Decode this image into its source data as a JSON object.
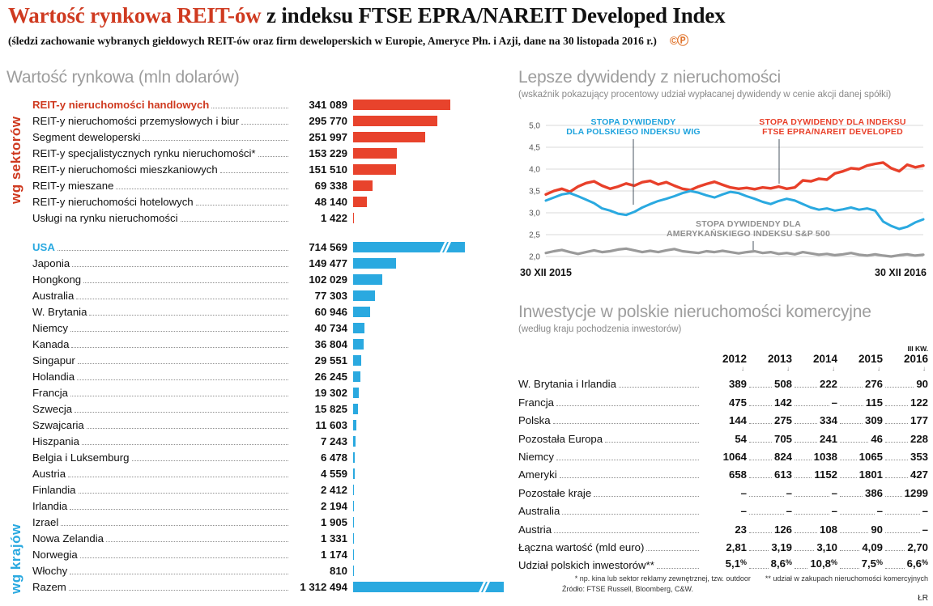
{
  "colors": {
    "red": "#e8432c",
    "blue": "#2aa9e0",
    "gray_line": "#9a9a9a",
    "title_red": "#cf3a20"
  },
  "header": {
    "title_red": "Wartość rynkowa REIT-ów",
    "title_black": " z indeksu FTSE EPRA/NAREIT Developed Index",
    "subtitle": "(śledzi zachowanie wybranych giełdowych REIT-ów oraz firm deweloperskich w Europie, Ameryce Płn. i Azji, dane na 30 listopada 2016 r.)",
    "copyright": "©Ⓟ"
  },
  "chart_data": [
    {
      "type": "bar",
      "title": "Wartość rynkowa (mln dolarów)",
      "unit": "mln dolarów",
      "groups": [
        {
          "name": "wg sektorów",
          "items": [
            {
              "label": "REIT-y nieruchomości handlowych",
              "value": 341089,
              "display": "341 089",
              "emphasis": true
            },
            {
              "label": "REIT-y nieruchomości przemysłowych i biur",
              "value": 295770,
              "display": "295 770"
            },
            {
              "label": "Segment deweloperski",
              "value": 251997,
              "display": "251 997"
            },
            {
              "label": "REIT-y specjalistycznych rynku nieruchomości*",
              "value": 153229,
              "display": "153 229"
            },
            {
              "label": "REIT-y nieruchomości mieszkaniowych",
              "value": 151510,
              "display": "151 510"
            },
            {
              "label": "REIT-y mieszane",
              "value": 69338,
              "display": "69 338"
            },
            {
              "label": "REIT-y nieruchomości hotelowych",
              "value": 48140,
              "display": "48 140"
            },
            {
              "label": "Usługi na rynku nieruchomości",
              "value": 1422,
              "display": "1 422"
            }
          ]
        },
        {
          "name": "wg krajów",
          "items": [
            {
              "label": "USA",
              "value": 714569,
              "display": "714 569",
              "emphasis": true,
              "broken": true
            },
            {
              "label": "Japonia",
              "value": 149477,
              "display": "149 477"
            },
            {
              "label": "Hongkong",
              "value": 102029,
              "display": "102 029"
            },
            {
              "label": "Australia",
              "value": 77303,
              "display": "77 303"
            },
            {
              "label": "W. Brytania",
              "value": 60946,
              "display": "60 946"
            },
            {
              "label": "Niemcy",
              "value": 40734,
              "display": "40 734"
            },
            {
              "label": "Kanada",
              "value": 36804,
              "display": "36 804"
            },
            {
              "label": "Singapur",
              "value": 29551,
              "display": "29 551"
            },
            {
              "label": "Holandia",
              "value": 26245,
              "display": "26 245"
            },
            {
              "label": "Francja",
              "value": 19302,
              "display": "19 302"
            },
            {
              "label": "Szwecja",
              "value": 15825,
              "display": "15 825"
            },
            {
              "label": "Szwajcaria",
              "value": 11603,
              "display": "11 603"
            },
            {
              "label": "Hiszpania",
              "value": 7243,
              "display": "7 243"
            },
            {
              "label": "Belgia i Luksemburg",
              "value": 6478,
              "display": "6 478"
            },
            {
              "label": "Austria",
              "value": 4559,
              "display": "4 559"
            },
            {
              "label": "Finlandia",
              "value": 2412,
              "display": "2 412"
            },
            {
              "label": "Irlandia",
              "value": 2194,
              "display": "2 194"
            },
            {
              "label": "Izrael",
              "value": 1905,
              "display": "1 905"
            },
            {
              "label": "Nowa Zelandia",
              "value": 1331,
              "display": "1 331"
            },
            {
              "label": "Norwegia",
              "value": 1174,
              "display": "1 174"
            },
            {
              "label": "Włochy",
              "value": 810,
              "display": "810"
            },
            {
              "label": "Razem",
              "value": 1312494,
              "display": "1 312 494",
              "broken": true
            }
          ]
        }
      ]
    },
    {
      "type": "line",
      "title": "Lepsze dywidendy z nieruchomości",
      "subtitle": "(wskaźnik pokazujący procentowy udział wypłacanej dywidendy w cenie akcji danej spółki)",
      "ylim": [
        2.0,
        5.0
      ],
      "y_tick_values": [
        5.0,
        4.5,
        4.0,
        3.5,
        3.0,
        2.5,
        2.0
      ],
      "y_tick_labels": [
        "5,0",
        "4,5",
        "4,0",
        "3,5",
        "3,0",
        "2,5",
        "2,0"
      ],
      "x_range": [
        "30 XII 2015",
        "30 XII 2016"
      ],
      "annotations": [
        {
          "id": "wig",
          "lines": [
            "STOPA DYWIDENDY",
            "DLA POLSKIEGO INDEKSU WIG"
          ]
        },
        {
          "id": "ftse",
          "lines": [
            "STOPA DYWIDENDY DLA INDEKSU",
            "FTSE EPRA/NAREIT DEVELOPED"
          ]
        },
        {
          "id": "sp500",
          "lines": [
            "STOPA DYWIDENDY DLA",
            "AMERYKAŃSKIEGO INDEKSU S&P 500"
          ]
        }
      ],
      "series": [
        {
          "id": "ftse",
          "name": "STOPA DYWIDENDY DLA INDEKSU FTSE EPRA/NAREIT DEVELOPED",
          "color": "#e8402a",
          "width": 3.4,
          "values": [
            3.42,
            3.5,
            3.55,
            3.48,
            3.6,
            3.68,
            3.72,
            3.62,
            3.55,
            3.6,
            3.67,
            3.62,
            3.7,
            3.73,
            3.65,
            3.7,
            3.62,
            3.55,
            3.52,
            3.6,
            3.66,
            3.71,
            3.64,
            3.58,
            3.55,
            3.57,
            3.54,
            3.58,
            3.56,
            3.6,
            3.55,
            3.58,
            3.74,
            3.72,
            3.78,
            3.76,
            3.9,
            3.95,
            4.02,
            4.0,
            4.08,
            4.12,
            4.15,
            4.02,
            3.95,
            4.1,
            4.04,
            4.08
          ]
        },
        {
          "id": "wig",
          "name": "STOPA DYWIDENDY DLA POLSKIEGO INDEKSU WIG",
          "color": "#2aa9e0",
          "width": 3.0,
          "values": [
            3.28,
            3.35,
            3.42,
            3.45,
            3.38,
            3.3,
            3.22,
            3.1,
            3.05,
            2.98,
            2.95,
            3.02,
            3.12,
            3.2,
            3.27,
            3.32,
            3.38,
            3.45,
            3.5,
            3.46,
            3.4,
            3.35,
            3.42,
            3.48,
            3.45,
            3.38,
            3.32,
            3.25,
            3.2,
            3.27,
            3.32,
            3.28,
            3.2,
            3.12,
            3.07,
            3.1,
            3.05,
            3.08,
            3.12,
            3.07,
            3.1,
            3.05,
            2.8,
            2.7,
            2.63,
            2.68,
            2.78,
            2.85
          ]
        },
        {
          "id": "sp500",
          "name": "STOPA DYWIDENDY DLA AMERYKAŃSKIEGO INDEKSU S&P 500",
          "color": "#9a9a9a",
          "width": 3.2,
          "values": [
            2.08,
            2.12,
            2.15,
            2.1,
            2.06,
            2.1,
            2.14,
            2.1,
            2.12,
            2.16,
            2.18,
            2.14,
            2.1,
            2.13,
            2.1,
            2.14,
            2.17,
            2.12,
            2.1,
            2.08,
            2.12,
            2.1,
            2.13,
            2.1,
            2.07,
            2.1,
            2.12,
            2.08,
            2.1,
            2.06,
            2.08,
            2.05,
            2.1,
            2.07,
            2.04,
            2.06,
            2.03,
            2.05,
            2.08,
            2.04,
            2.02,
            2.05,
            2.02,
            2.0,
            2.03,
            2.05,
            2.02,
            2.04
          ]
        }
      ]
    },
    {
      "type": "table",
      "title": "Inwestycje w polskie nieruchomości komercyjne",
      "subtitle": "(według kraju pochodzenia inwestorów)",
      "columns": [
        {
          "year": "2012"
        },
        {
          "year": "2013"
        },
        {
          "year": "2014"
        },
        {
          "year": "2015"
        },
        {
          "pre": "III KW.",
          "year": "2016"
        }
      ],
      "rows": [
        {
          "label": "W. Brytania i Irlandia",
          "values": [
            "389",
            "508",
            "222",
            "276",
            "90"
          ]
        },
        {
          "label": "Francja",
          "values": [
            "475",
            "142",
            "–",
            "115",
            "122"
          ]
        },
        {
          "label": "Polska",
          "values": [
            "144",
            "275",
            "334",
            "309",
            "177"
          ]
        },
        {
          "label": "Pozostała Europa",
          "values": [
            "54",
            "705",
            "241",
            "46",
            "228"
          ]
        },
        {
          "label": "Niemcy",
          "values": [
            "1064",
            "824",
            "1038",
            "1065",
            "353"
          ]
        },
        {
          "label": "Ameryki",
          "values": [
            "658",
            "613",
            "1152",
            "1801",
            "427"
          ]
        },
        {
          "label": "Pozostałe kraje",
          "values": [
            "–",
            "–",
            "–",
            "386",
            "1299"
          ]
        },
        {
          "label": "Australia",
          "values": [
            "–",
            "–",
            "–",
            "–",
            "–"
          ]
        },
        {
          "label": "Austria",
          "values": [
            "23",
            "126",
            "108",
            "90",
            "–"
          ]
        },
        {
          "label": "Łączna wartość (mld euro)",
          "values": [
            "2,81",
            "3,19",
            "3,10",
            "4,09",
            "2,70"
          ]
        },
        {
          "label": "Udział polskich inwestorów**",
          "values": [
            "5,1%",
            "8,6%",
            "10,8%",
            "7,5%",
            "6,6%"
          ]
        }
      ]
    }
  ],
  "footnotes": {
    "note1": "* np. kina lub sektor reklamy zewnętrznej, tzw. outdoor",
    "note2": "** udział w zakupach nieruchomości komercyjnych",
    "source": "Źródło: FTSE Russell, Bloomberg, C&W.",
    "initials": "ŁR"
  }
}
